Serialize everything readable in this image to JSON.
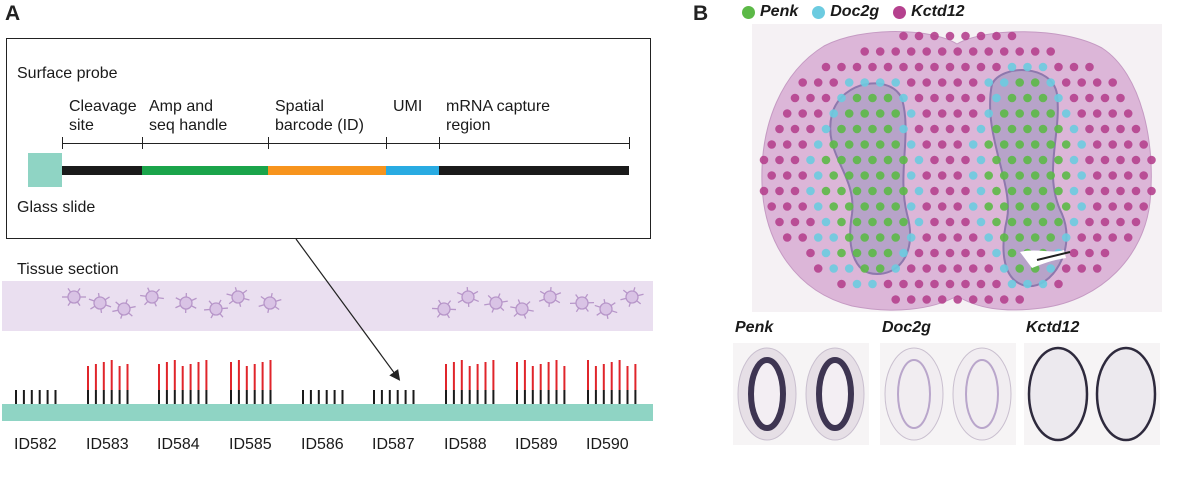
{
  "panels": {
    "a": "A",
    "b": "B"
  },
  "probe": {
    "title": "Surface probe",
    "glass_label": "Glass slide",
    "segments": [
      {
        "label": "Cleavage\nsite",
        "color": "#1a1a1a"
      },
      {
        "label": "Amp and\nseq handle",
        "color": "#1aa44a"
      },
      {
        "label": "Spatial\nbarcode (ID)",
        "color": "#f7941d"
      },
      {
        "label": "UMI",
        "color": "#29abe2"
      },
      {
        "label": "mRNA capture\nregion",
        "color": "#1a1a1a"
      }
    ]
  },
  "tissue": {
    "label": "Tissue section"
  },
  "spots": [
    {
      "id": "ID582",
      "red": [
        0,
        0,
        0,
        0,
        0,
        0
      ]
    },
    {
      "id": "ID583",
      "red": [
        1,
        1,
        1,
        1,
        1,
        1
      ]
    },
    {
      "id": "ID584",
      "red": [
        1,
        1,
        1,
        1,
        1,
        1,
        1
      ]
    },
    {
      "id": "ID585",
      "red": [
        1,
        1,
        1,
        1,
        1,
        1
      ]
    },
    {
      "id": "ID586",
      "red": [
        0,
        0,
        0,
        0,
        0,
        0
      ]
    },
    {
      "id": "ID587",
      "red": [
        0,
        0,
        0,
        0,
        0,
        0
      ]
    },
    {
      "id": "ID588",
      "red": [
        1,
        1,
        1,
        1,
        1,
        1,
        1
      ]
    },
    {
      "id": "ID589",
      "red": [
        1,
        1,
        1,
        1,
        1,
        1,
        1
      ]
    },
    {
      "id": "ID590",
      "red": [
        1,
        1,
        1,
        1,
        1,
        1,
        1
      ]
    }
  ],
  "legend": [
    {
      "name": "Penk",
      "color": "#5cb947"
    },
    {
      "name": "Doc2g",
      "color": "#6ccbe0"
    },
    {
      "name": "Kctd12",
      "color": "#b5418e"
    }
  ],
  "thumbnails": [
    {
      "title": "Penk"
    },
    {
      "title": "Doc2g"
    },
    {
      "title": "Kctd12"
    }
  ]
}
